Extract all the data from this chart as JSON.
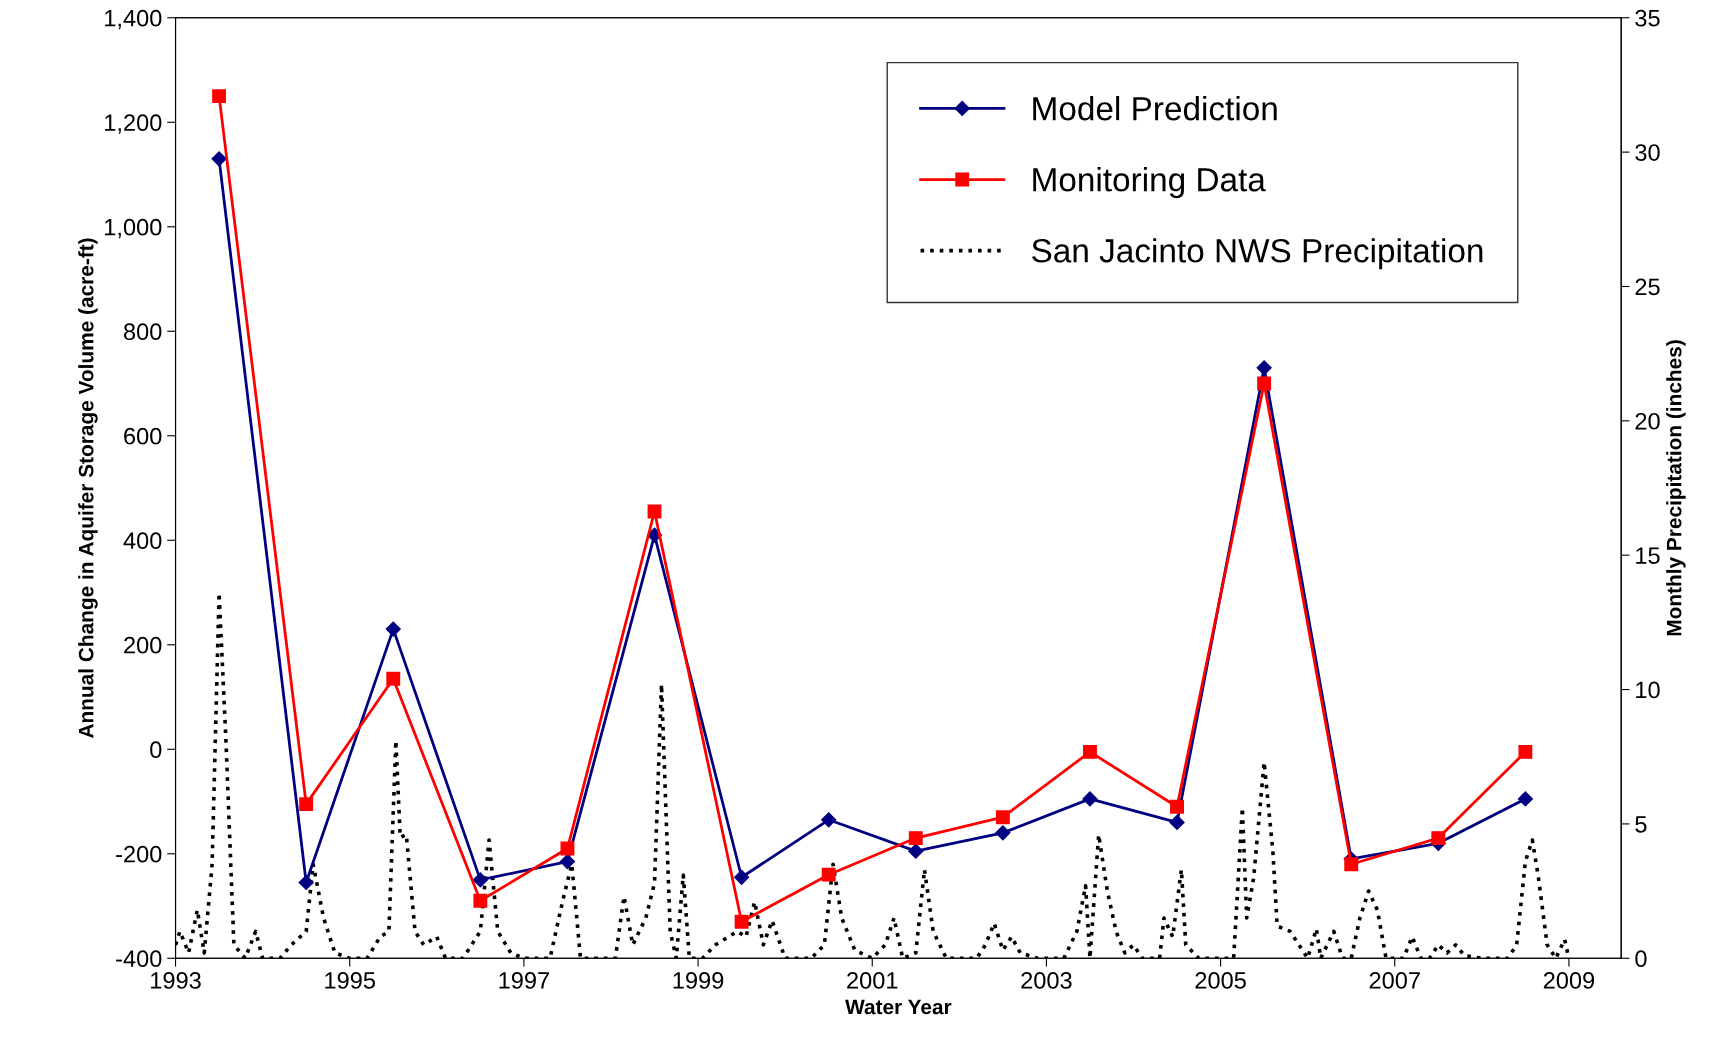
{
  "chart_data": {
    "type": "line",
    "xlabel": "Water Year",
    "ylabel": "Annual Change in Aquifer Storage Volume (acre-ft)",
    "y2label": "Monthly Precipitation (inches)",
    "xlim": [
      1993,
      2009.6
    ],
    "xticks": [
      1993,
      1995,
      1997,
      1999,
      2001,
      2003,
      2005,
      2007,
      2009
    ],
    "ylim": [
      -400,
      1400
    ],
    "yticks": [
      {
        "value": -400,
        "label": "-400"
      },
      {
        "value": -200,
        "label": "-200"
      },
      0,
      200,
      400,
      600,
      800,
      {
        "value": 1000,
        "label": "1,000"
      },
      {
        "value": 1200,
        "label": "1,200"
      },
      {
        "value": 1400,
        "label": "1,400"
      }
    ],
    "y2lim": [
      0,
      35
    ],
    "y2ticks": [
      0,
      5,
      10,
      15,
      20,
      25,
      30,
      35
    ],
    "legend": "top right",
    "grid": false,
    "series": [
      {
        "name": "Model Prediction",
        "color": "#000080",
        "marker": "diamond",
        "line_style": "solid",
        "x": [
          1993.5,
          1994.5,
          1995.5,
          1996.5,
          1997.5,
          1998.5,
          1999.5,
          2000.5,
          2001.5,
          2002.5,
          2003.5,
          2004.5,
          2005.5,
          2006.5,
          2007.5,
          2008.5
        ],
        "values": [
          1130,
          -255,
          230,
          -250,
          -215,
          410,
          -245,
          -135,
          -195,
          -160,
          -95,
          -140,
          730,
          -210,
          -180,
          -95
        ]
      },
      {
        "name": "Monitoring Data",
        "color": "#ff0000",
        "marker": "square",
        "line_style": "solid",
        "x": [
          1993.5,
          1994.5,
          1995.5,
          1996.5,
          1997.5,
          1998.5,
          1999.5,
          2000.5,
          2001.5,
          2002.5,
          2003.5,
          2004.5,
          2005.5,
          2006.5,
          2007.5,
          2008.5
        ],
        "values": [
          1250,
          -105,
          135,
          -290,
          -190,
          455,
          -330,
          -240,
          -170,
          -130,
          -5,
          -110,
          700,
          -220,
          -170,
          -5
        ]
      },
      {
        "name": "San Jacinto NWS Precipitation",
        "color": "#000000",
        "marker": "none",
        "line_style": "dotted",
        "axis": "y2",
        "x": [
          1993.0,
          1993.05,
          1993.15,
          1993.25,
          1993.33,
          1993.42,
          1993.5,
          1993.58,
          1993.67,
          1993.8,
          1993.92,
          1994.0,
          1994.2,
          1994.33,
          1994.5,
          1994.58,
          1994.7,
          1994.83,
          1995.0,
          1995.2,
          1995.35,
          1995.45,
          1995.53,
          1995.58,
          1995.65,
          1995.75,
          1995.85,
          1996.0,
          1996.1,
          1996.3,
          1996.4,
          1996.5,
          1996.6,
          1996.7,
          1996.85,
          1997.0,
          1997.3,
          1997.45,
          1997.55,
          1997.65,
          1997.9,
          1998.05,
          1998.15,
          1998.25,
          1998.4,
          1998.5,
          1998.58,
          1998.68,
          1998.75,
          1998.83,
          1998.9,
          1999.05,
          1999.2,
          1999.35,
          1999.45,
          1999.55,
          1999.65,
          1999.75,
          1999.85,
          2000.0,
          2000.3,
          2000.45,
          2000.55,
          2000.65,
          2000.8,
          2001.0,
          2001.15,
          2001.25,
          2001.35,
          2001.5,
          2001.6,
          2001.7,
          2001.85,
          2002.2,
          2002.3,
          2002.4,
          2002.5,
          2002.6,
          2002.7,
          2002.9,
          2003.2,
          2003.35,
          2003.45,
          2003.5,
          2003.6,
          2003.7,
          2003.8,
          2003.9,
          2004.0,
          2004.1,
          2004.3,
          2004.35,
          2004.45,
          2004.55,
          2004.6,
          2004.75,
          2005.0,
          2005.15,
          2005.25,
          2005.3,
          2005.38,
          2005.5,
          2005.6,
          2005.65,
          2005.8,
          2006.0,
          2006.1,
          2006.15,
          2006.3,
          2006.4,
          2006.5,
          2006.6,
          2006.7,
          2006.8,
          2006.9,
          2007.1,
          2007.2,
          2007.3,
          2007.4,
          2007.5,
          2007.6,
          2007.7,
          2007.8,
          2008.0,
          2008.3,
          2008.4,
          2008.5,
          2008.58,
          2008.65,
          2008.75,
          2008.85,
          2008.95,
          2009.0
        ],
        "values": [
          0.5,
          1.0,
          0.2,
          1.8,
          0.2,
          3.5,
          13.6,
          8,
          0.5,
          0,
          1.0,
          0,
          0,
          0.5,
          1.0,
          3.5,
          1.5,
          0.2,
          0,
          0,
          0.8,
          1.0,
          8.1,
          4.5,
          4.6,
          1.0,
          0.5,
          0.8,
          0,
          0,
          0.5,
          1.0,
          4.4,
          1.0,
          0.2,
          0,
          0,
          2.2,
          3.5,
          0,
          0,
          0,
          2.3,
          0.5,
          1.5,
          2.8,
          10.2,
          1,
          0,
          3.1,
          0,
          0,
          0.5,
          0.8,
          1.0,
          0.8,
          2.1,
          0.5,
          1.4,
          0,
          0,
          0.5,
          3.5,
          1.5,
          0.3,
          0,
          0.5,
          1.5,
          0,
          0.2,
          3.3,
          1.0,
          0,
          0,
          0.5,
          1.3,
          0.3,
          0.8,
          0.2,
          0,
          0,
          1.0,
          2.7,
          0,
          4.6,
          2.5,
          1,
          0.2,
          0.5,
          0,
          0,
          1.5,
          0.8,
          3.3,
          0.5,
          0,
          0,
          0,
          5.6,
          1.5,
          3.0,
          7.3,
          4,
          1.2,
          1.0,
          0,
          1.1,
          0,
          1.0,
          0,
          0,
          1.5,
          2.5,
          1.8,
          0,
          0,
          0.8,
          0,
          0,
          0.5,
          0.2,
          0.5,
          0.1,
          0,
          0,
          0.5,
          3.6,
          4.4,
          3.0,
          0.5,
          0,
          0.7,
          0
        ]
      }
    ]
  }
}
